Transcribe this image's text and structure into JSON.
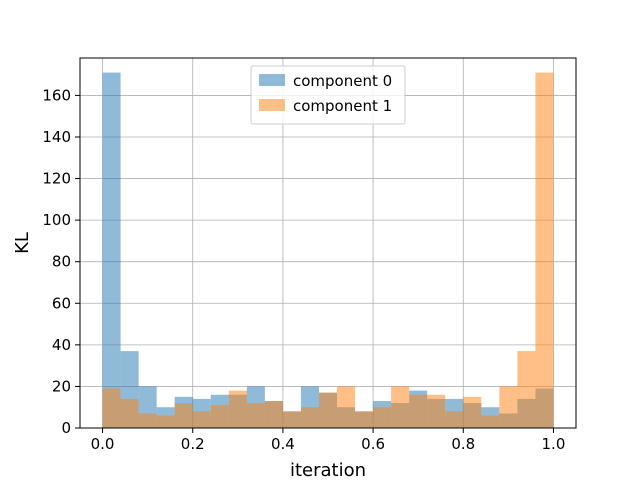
{
  "chart_data": {
    "type": "bar",
    "title": "",
    "xlabel": "iteration",
    "ylabel": "KL",
    "xlim": [
      -0.05,
      1.05
    ],
    "ylim": [
      0,
      178
    ],
    "xticks": [
      0.0,
      0.2,
      0.4,
      0.6,
      0.8,
      1.0
    ],
    "xtick_labels": [
      "0.0",
      "0.2",
      "0.4",
      "0.6",
      "0.8",
      "1.0"
    ],
    "yticks": [
      0,
      20,
      40,
      60,
      80,
      100,
      120,
      140,
      160
    ],
    "ytick_labels": [
      "0",
      "20",
      "40",
      "60",
      "80",
      "100",
      "120",
      "140",
      "160"
    ],
    "grid": true,
    "legend_position": "top-center",
    "bin_edges": [
      0.0,
      0.04,
      0.08,
      0.12,
      0.16,
      0.2,
      0.24,
      0.28,
      0.32,
      0.36,
      0.4,
      0.44,
      0.48,
      0.52,
      0.56,
      0.6,
      0.64,
      0.68,
      0.72,
      0.76,
      0.8,
      0.84,
      0.88,
      0.92,
      0.96,
      1.0
    ],
    "series": [
      {
        "name": "component 0",
        "color": "#1f77b4",
        "alpha": 0.5,
        "values": [
          171,
          37,
          20,
          10,
          15,
          14,
          16,
          16,
          20,
          13,
          8,
          20,
          17,
          10,
          8,
          13,
          12,
          18,
          14,
          14,
          12,
          10,
          7,
          14,
          19
        ]
      },
      {
        "name": "component 1",
        "color": "#ff7f0e",
        "alpha": 0.5,
        "values": [
          19,
          14,
          7,
          6,
          12,
          8,
          11,
          18,
          12,
          13,
          8,
          10,
          17,
          20,
          8,
          10,
          20,
          16,
          16,
          8,
          15,
          6,
          20,
          37,
          171
        ]
      }
    ]
  }
}
